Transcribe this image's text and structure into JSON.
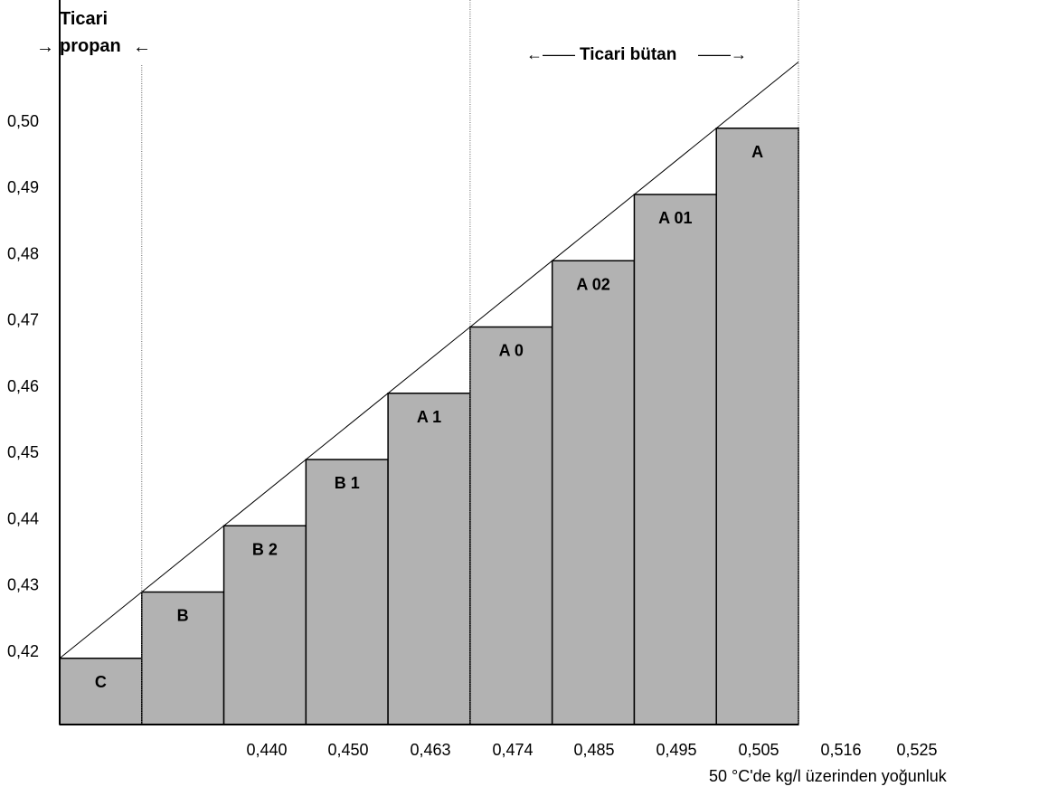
{
  "chart_data": {
    "type": "bar",
    "title": "",
    "xlabel": "50 °C'de kg/l üzerinden yoğunluk",
    "ylabel": "",
    "categories": [
      "C",
      "B",
      "B 2",
      "B 1",
      "A 1",
      "A 0",
      "A 02",
      "A 01",
      "A"
    ],
    "values": [
      0.42,
      0.43,
      0.44,
      0.45,
      0.46,
      0.47,
      0.48,
      0.49,
      0.5
    ],
    "bar_color": "#b2b2b2",
    "ylim": [
      0.41,
      0.51
    ],
    "y_ticks": [
      0.42,
      0.43,
      0.44,
      0.45,
      0.46,
      0.47,
      0.48,
      0.49,
      0.5
    ],
    "y_tick_labels": [
      "0,42",
      "0,43",
      "0,44",
      "0,45",
      "0,46",
      "0,47",
      "0,48",
      "0,49",
      "0,50"
    ],
    "x_tick_labels": [
      "0,440",
      "0,450",
      "0,463",
      "0,474",
      "0,485",
      "0,495",
      "0,505",
      "0,516",
      "0,525"
    ],
    "diagonal_line": true,
    "grid": false,
    "annotations": {
      "propane_label_line1": "Ticari",
      "propane_label_line2": "propan",
      "propane_arrow_left": "→",
      "propane_arrow_right": "←",
      "butane_label": "Ticari bütan",
      "butane_arrow_left": "←——",
      "butane_arrow_right": "——→"
    }
  }
}
